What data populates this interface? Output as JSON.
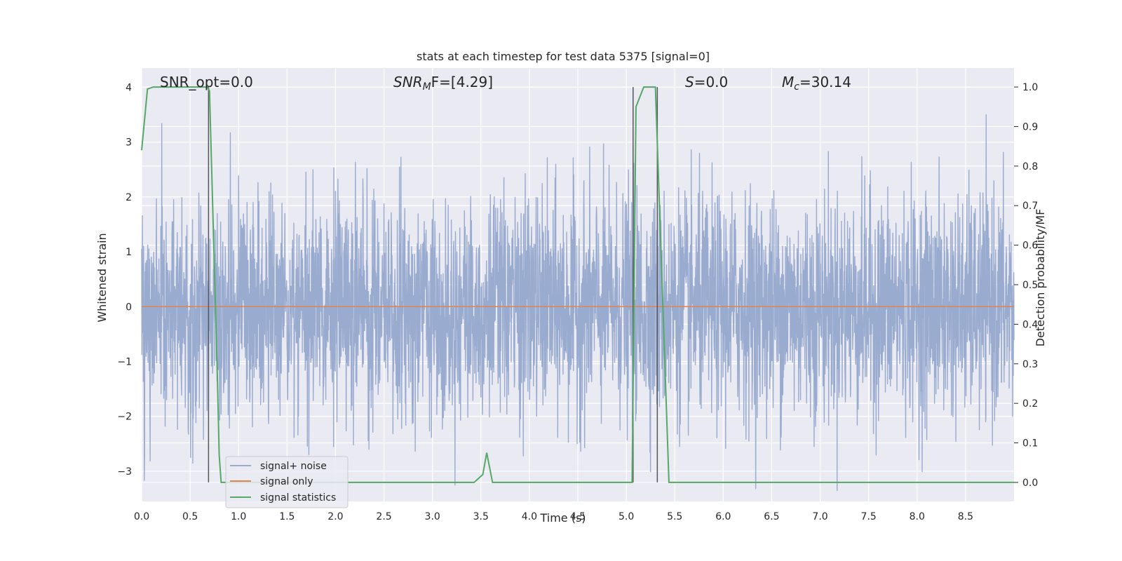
{
  "chart_data": {
    "type": "line",
    "title": "stats at each timestep for test data 5375 [signal=0]",
    "xlabel": "Time (s)",
    "ylabel": "Whitened strain",
    "y2label": "Detection probability/MF",
    "xlim": [
      0.0,
      9.0
    ],
    "ylim": [
      -3.55,
      4.35
    ],
    "y2lim": [
      -0.048,
      1.048
    ],
    "xticks": [
      "0.0",
      "0.5",
      "1.0",
      "1.5",
      "2.0",
      "2.5",
      "3.0",
      "3.5",
      "4.0",
      "4.5",
      "5.0",
      "5.5",
      "6.0",
      "6.5",
      "7.0",
      "7.5",
      "8.0",
      "8.5"
    ],
    "yticks": [
      "−3",
      "−2",
      "−1",
      "0",
      "1",
      "2",
      "3",
      "4"
    ],
    "y2ticks": [
      "0.0",
      "0.1",
      "0.2",
      "0.3",
      "0.4",
      "0.5",
      "0.6",
      "0.7",
      "0.8",
      "0.9",
      "1.0"
    ],
    "grid": true,
    "legend_position": "lower-left",
    "annotations": {
      "snr_opt": "SNR_opt=0.0",
      "snr_mf_italic": "SNR",
      "snr_mf_sub": "M",
      "snr_mf_rest": "F=[4.29]",
      "s_italic": "S",
      "s_rest": "=0.0",
      "mc_italic": "M",
      "mc_sub": "c",
      "mc_rest": "=30.14"
    },
    "series": [
      {
        "name": "signal+ noise",
        "color": "#9aabd0",
        "noise_sigma": 1.0,
        "sample_rate": 400
      },
      {
        "name": "signal only",
        "color": "#dd8452",
        "values": [
          0.0,
          0.0
        ]
      },
      {
        "name": "signal statistics",
        "color": "#55a868",
        "axis": "right",
        "x": [
          0.0,
          0.06,
          0.12,
          0.5,
          0.62,
          0.68,
          0.7,
          0.78,
          0.8,
          0.82,
          0.84,
          1.0,
          2.0,
          3.0,
          3.43,
          3.52,
          3.56,
          3.62,
          4.0,
          5.06,
          5.1,
          5.18,
          5.3,
          5.44,
          5.5,
          6.0,
          7.0,
          8.0,
          9.0
        ],
        "y": [
          0.84,
          0.995,
          1.0,
          1.0,
          1.0,
          1.0,
          0.99,
          0.28,
          0.07,
          0.0,
          0.0,
          0.0,
          0.0,
          0.0,
          0.0,
          0.02,
          0.075,
          0.0,
          0.0,
          0.0,
          0.95,
          1.0,
          1.0,
          0.0,
          0.0,
          0.0,
          0.0,
          0.0,
          0.0
        ]
      }
    ],
    "vlines": [
      0.69,
      5.07,
      5.32
    ]
  }
}
